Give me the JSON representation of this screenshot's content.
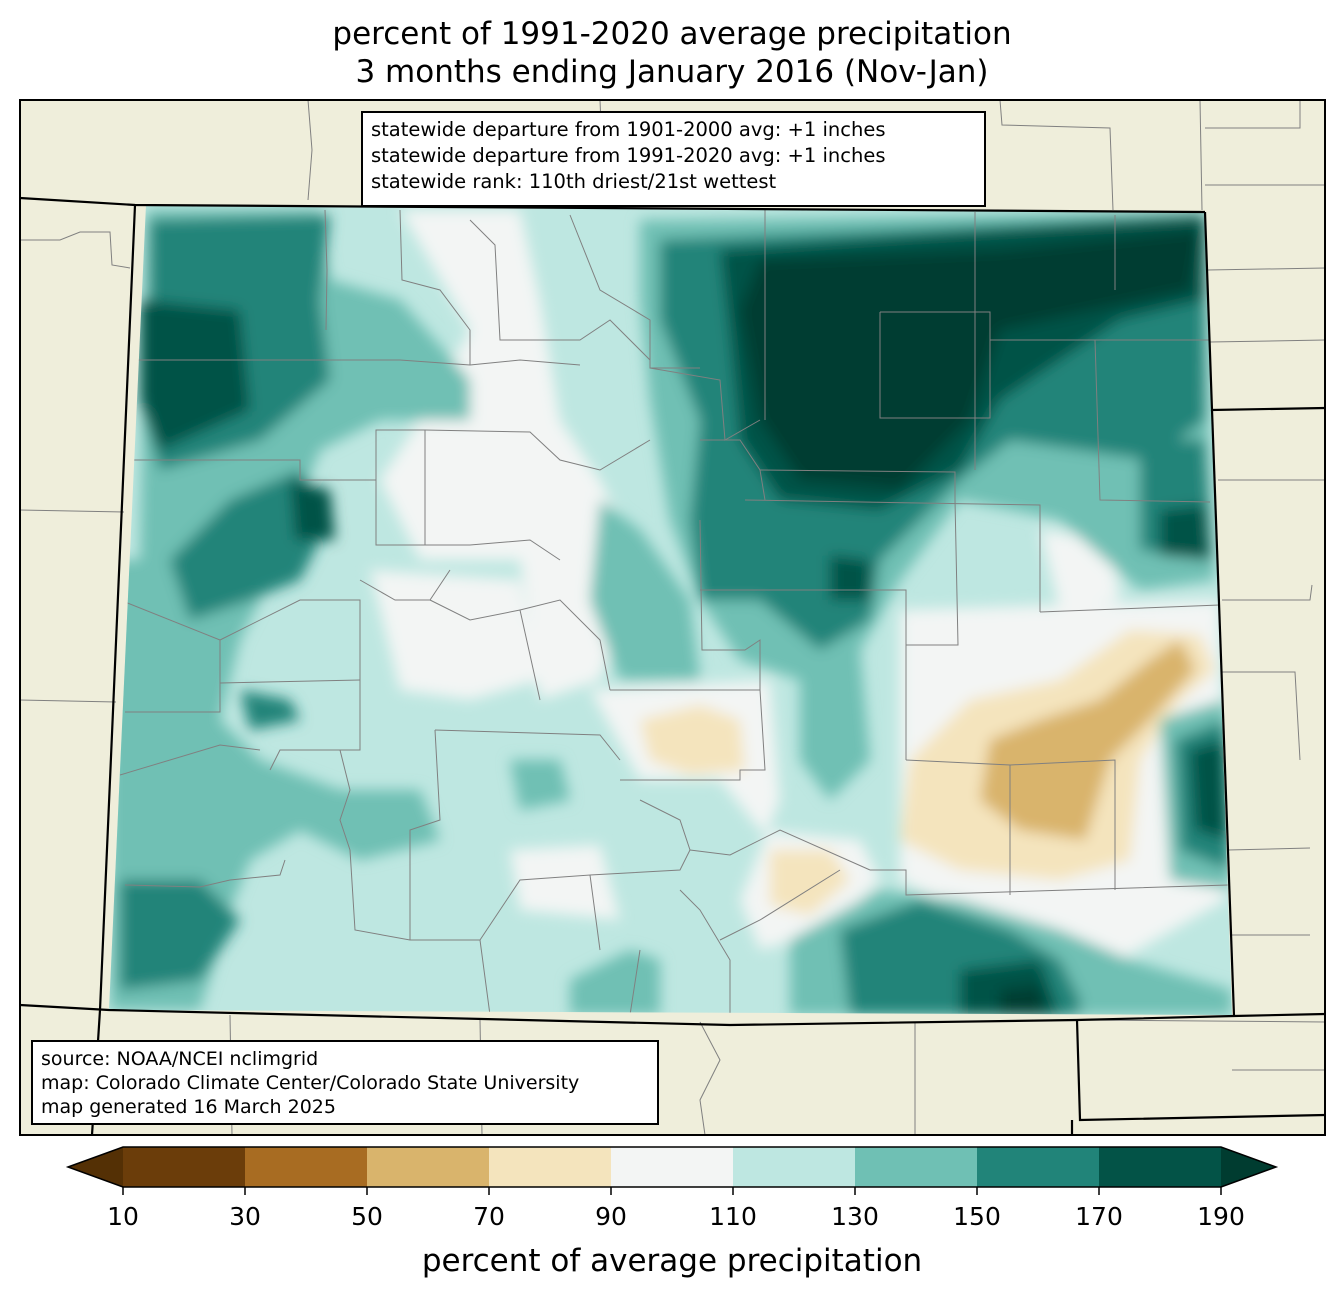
{
  "title_line1": "percent of 1991-2020 average precipitation",
  "title_line2": "3 months ending January 2016 (Nov-Jan)",
  "stats": [
    "statewide departure from 1901-2000 avg: +1 inches",
    "statewide departure from 1991-2020 avg: +1 inches",
    "statewide rank: 110th driest/21st wettest"
  ],
  "source": [
    "source: NOAA/NCEI nclimgrid",
    "map: Colorado Climate Center/Colorado State University",
    "map generated 16 March 2025"
  ],
  "colorbar": {
    "label": "percent of average precipitation",
    "ticks": [
      "10",
      "30",
      "50",
      "70",
      "90",
      "110",
      "130",
      "150",
      "170",
      "190"
    ],
    "colors": [
      "#6b3d0a",
      "#a86c22",
      "#d9b46c",
      "#f4e4bd",
      "#f3f5f4",
      "#bee7e1",
      "#6fc0b4",
      "#218479",
      "#035347"
    ],
    "under_color": "#543005",
    "over_color": "#003c30"
  },
  "palette": {
    "land": "#efeedb",
    "county_line": "#808080",
    "state_line": "#000000"
  }
}
